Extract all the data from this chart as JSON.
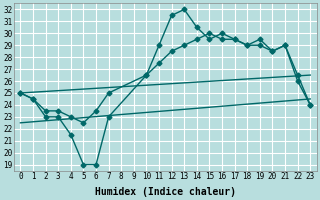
{
  "xlabel": "Humidex (Indice chaleur)",
  "xlim": [
    -0.5,
    23.5
  ],
  "ylim": [
    18.5,
    32.5
  ],
  "yticks": [
    19,
    20,
    21,
    22,
    23,
    24,
    25,
    26,
    27,
    28,
    29,
    30,
    31,
    32
  ],
  "xticks": [
    0,
    1,
    2,
    3,
    4,
    5,
    6,
    7,
    8,
    9,
    10,
    11,
    12,
    13,
    14,
    15,
    16,
    17,
    18,
    19,
    20,
    21,
    22,
    23
  ],
  "bg_color": "#b8dede",
  "grid_color": "#ffffff",
  "line_color": "#006868",
  "marker": "D",
  "marker_size": 2.5,
  "line_width": 1.0,
  "lines": [
    {
      "x": [
        0,
        1,
        2,
        3,
        4,
        5,
        6,
        7,
        10,
        11,
        12,
        13,
        14,
        15,
        16,
        17,
        18,
        19,
        20,
        21,
        22,
        23
      ],
      "y": [
        25,
        24.5,
        23,
        23,
        21.5,
        19,
        19,
        23,
        26.5,
        29,
        31.5,
        32,
        30.5,
        29.5,
        30,
        29.5,
        29,
        29.5,
        28.5,
        29,
        26,
        24
      ],
      "has_marker": true
    },
    {
      "x": [
        0,
        1,
        2,
        3,
        4,
        5,
        6,
        7,
        10,
        11,
        12,
        13,
        14,
        15,
        16,
        17,
        18,
        19,
        20,
        21,
        22,
        23
      ],
      "y": [
        25,
        24.5,
        23.5,
        23.5,
        23,
        22.5,
        23.5,
        25,
        26.5,
        27.5,
        28.5,
        29,
        29.5,
        30,
        29.5,
        29.5,
        29,
        29,
        28.5,
        29,
        26.5,
        24
      ],
      "has_marker": true
    },
    {
      "x": [
        0,
        23
      ],
      "y": [
        22.5,
        24.5
      ],
      "has_marker": false
    },
    {
      "x": [
        0,
        23
      ],
      "y": [
        25,
        26.5
      ],
      "has_marker": false
    }
  ],
  "tick_fontsize": 5.5,
  "label_fontsize": 7
}
